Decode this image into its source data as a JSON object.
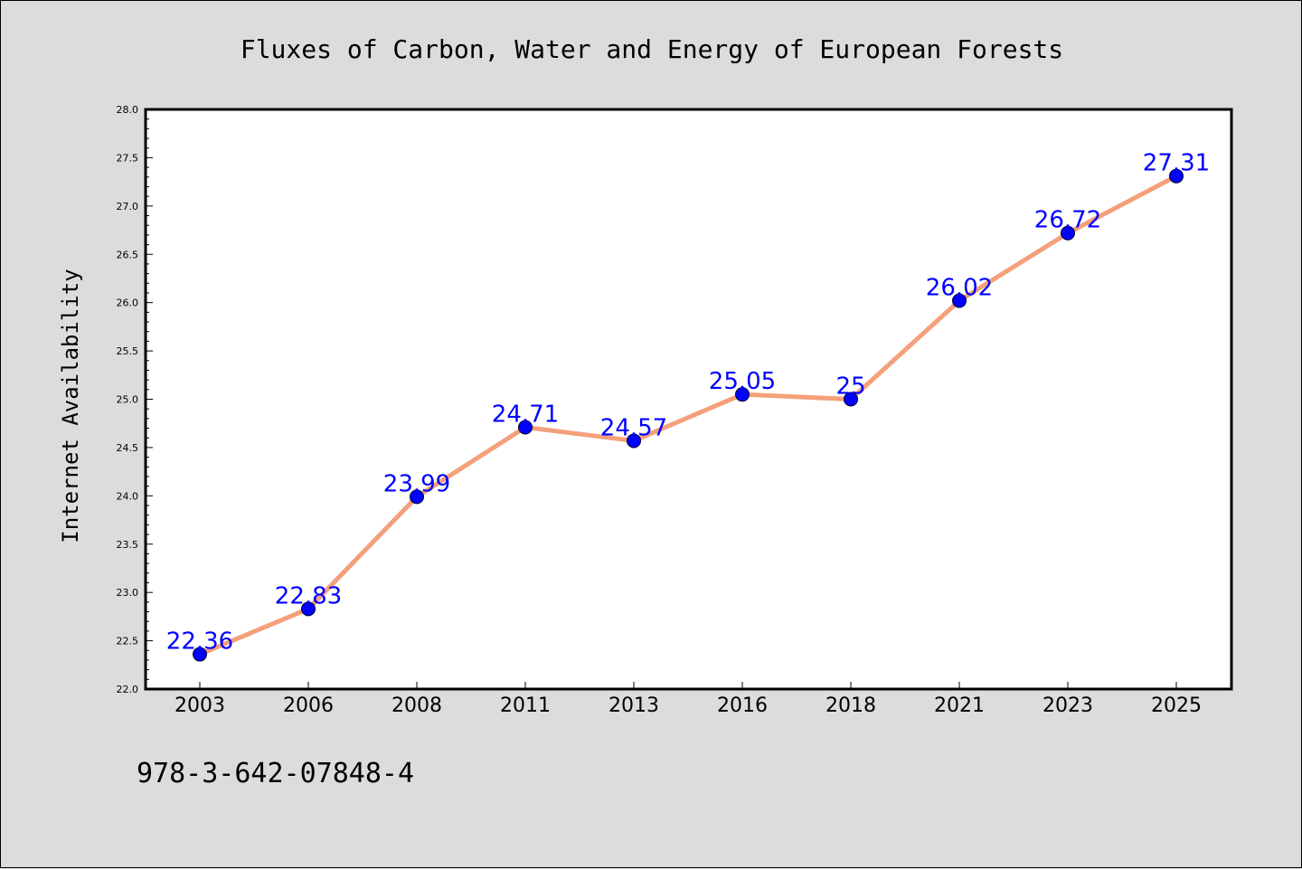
{
  "chart_data": {
    "type": "line",
    "title": "Fluxes of Carbon, Water and Energy of European Forests",
    "ylabel": "Internet Availability",
    "xlabel": "",
    "categories": [
      "2003",
      "2006",
      "2008",
      "2011",
      "2013",
      "2016",
      "2018",
      "2021",
      "2023",
      "2025"
    ],
    "series": [
      {
        "values": [
          22.36,
          22.83,
          23.99,
          24.71,
          24.57,
          25.05,
          25,
          26.02,
          26.72,
          27.31
        ],
        "labels": [
          "22.36",
          "22.83",
          "23.99",
          "24.71",
          "24.57",
          "25.05",
          "25",
          "26.02",
          "26.72",
          "27.31"
        ]
      }
    ],
    "ylim": [
      22.0,
      28.0
    ],
    "yticks": [
      "22.0",
      "22.5",
      "23.0",
      "23.5",
      "24.0",
      "24.5",
      "25.0",
      "25.5",
      "26.0",
      "26.5",
      "27.0",
      "27.5",
      "28.0"
    ],
    "grid": false,
    "legend": "none",
    "colors": {
      "line": "#f4a07a",
      "marker": "#0000ff",
      "label": "#0000ff",
      "background": "#dcdcdc",
      "plot_background": "#ffffff"
    }
  },
  "footer": {
    "isbn": "978-3-642-07848-4"
  }
}
